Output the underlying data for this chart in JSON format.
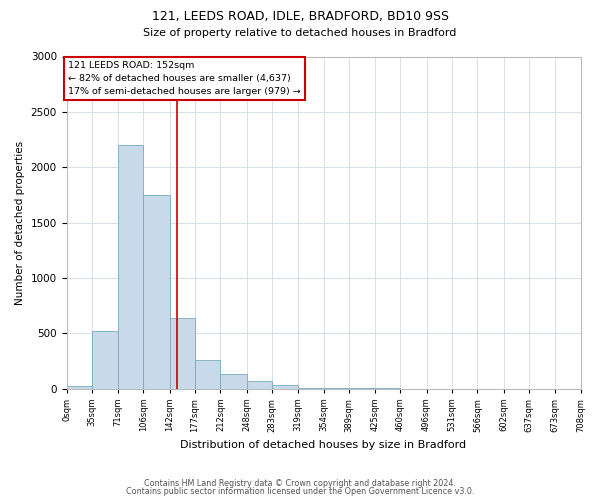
{
  "title1": "121, LEEDS ROAD, IDLE, BRADFORD, BD10 9SS",
  "title2": "Size of property relative to detached houses in Bradford",
  "xlabel": "Distribution of detached houses by size in Bradford",
  "ylabel": "Number of detached properties",
  "bin_edges": [
    0,
    35,
    71,
    106,
    142,
    177,
    212,
    248,
    283,
    319,
    354,
    389,
    425,
    460,
    496,
    531,
    566,
    602,
    637,
    673,
    708
  ],
  "bin_labels": [
    "0sqm",
    "35sqm",
    "71sqm",
    "106sqm",
    "142sqm",
    "177sqm",
    "212sqm",
    "248sqm",
    "283sqm",
    "319sqm",
    "354sqm",
    "389sqm",
    "425sqm",
    "460sqm",
    "496sqm",
    "531sqm",
    "566sqm",
    "602sqm",
    "637sqm",
    "673sqm",
    "708sqm"
  ],
  "counts": [
    20,
    520,
    2200,
    1750,
    640,
    260,
    130,
    70,
    30,
    10,
    5,
    3,
    2,
    1,
    0,
    0,
    0,
    0,
    0,
    0
  ],
  "bar_color": "#c8daea",
  "bar_edge_color": "#7aaabf",
  "vline_x": 152,
  "vline_color": "#cc0000",
  "annotation_title": "121 LEEDS ROAD: 152sqm",
  "annotation_line1": "← 82% of detached houses are smaller (4,637)",
  "annotation_line2": "17% of semi-detached houses are larger (979) →",
  "annotation_box_color": "#cc0000",
  "ylim": [
    0,
    3000
  ],
  "yticks": [
    0,
    500,
    1000,
    1500,
    2000,
    2500,
    3000
  ],
  "footer1": "Contains HM Land Registry data © Crown copyright and database right 2024.",
  "footer2": "Contains public sector information licensed under the Open Government Licence v3.0.",
  "background_color": "#ffffff",
  "grid_color": "#d0dce8"
}
